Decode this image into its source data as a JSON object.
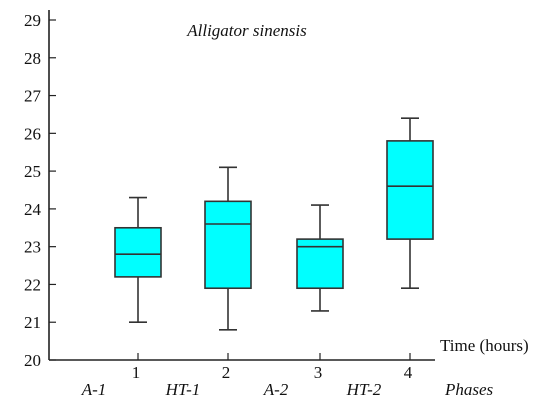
{
  "chart_data": {
    "type": "box",
    "title": "Alligator sinensis",
    "xlabel": "Time (hours)",
    "secondary_xlabel": "Phases",
    "ylabel": "",
    "ylim": [
      20,
      29
    ],
    "yticks": [
      20,
      21,
      22,
      23,
      24,
      25,
      26,
      27,
      28,
      29
    ],
    "categories": [
      "1",
      "2",
      "3",
      "4"
    ],
    "phase_labels": [
      "A-1",
      "HT-1",
      "A-2",
      "HT-2"
    ],
    "boxes": [
      {
        "x": "1",
        "min": 21.0,
        "q1": 22.2,
        "median": 22.8,
        "q3": 23.5,
        "max": 24.3
      },
      {
        "x": "2",
        "min": 20.8,
        "q1": 21.9,
        "median": 23.6,
        "q3": 24.2,
        "max": 25.1
      },
      {
        "x": "3",
        "min": 21.3,
        "q1": 21.9,
        "median": 23.0,
        "q3": 23.2,
        "max": 24.1
      },
      {
        "x": "4",
        "min": 21.9,
        "q1": 23.2,
        "median": 24.6,
        "q3": 25.8,
        "max": 26.4
      }
    ],
    "box_color": "#00FFFF",
    "line_color": "#333333",
    "grid": false
  }
}
